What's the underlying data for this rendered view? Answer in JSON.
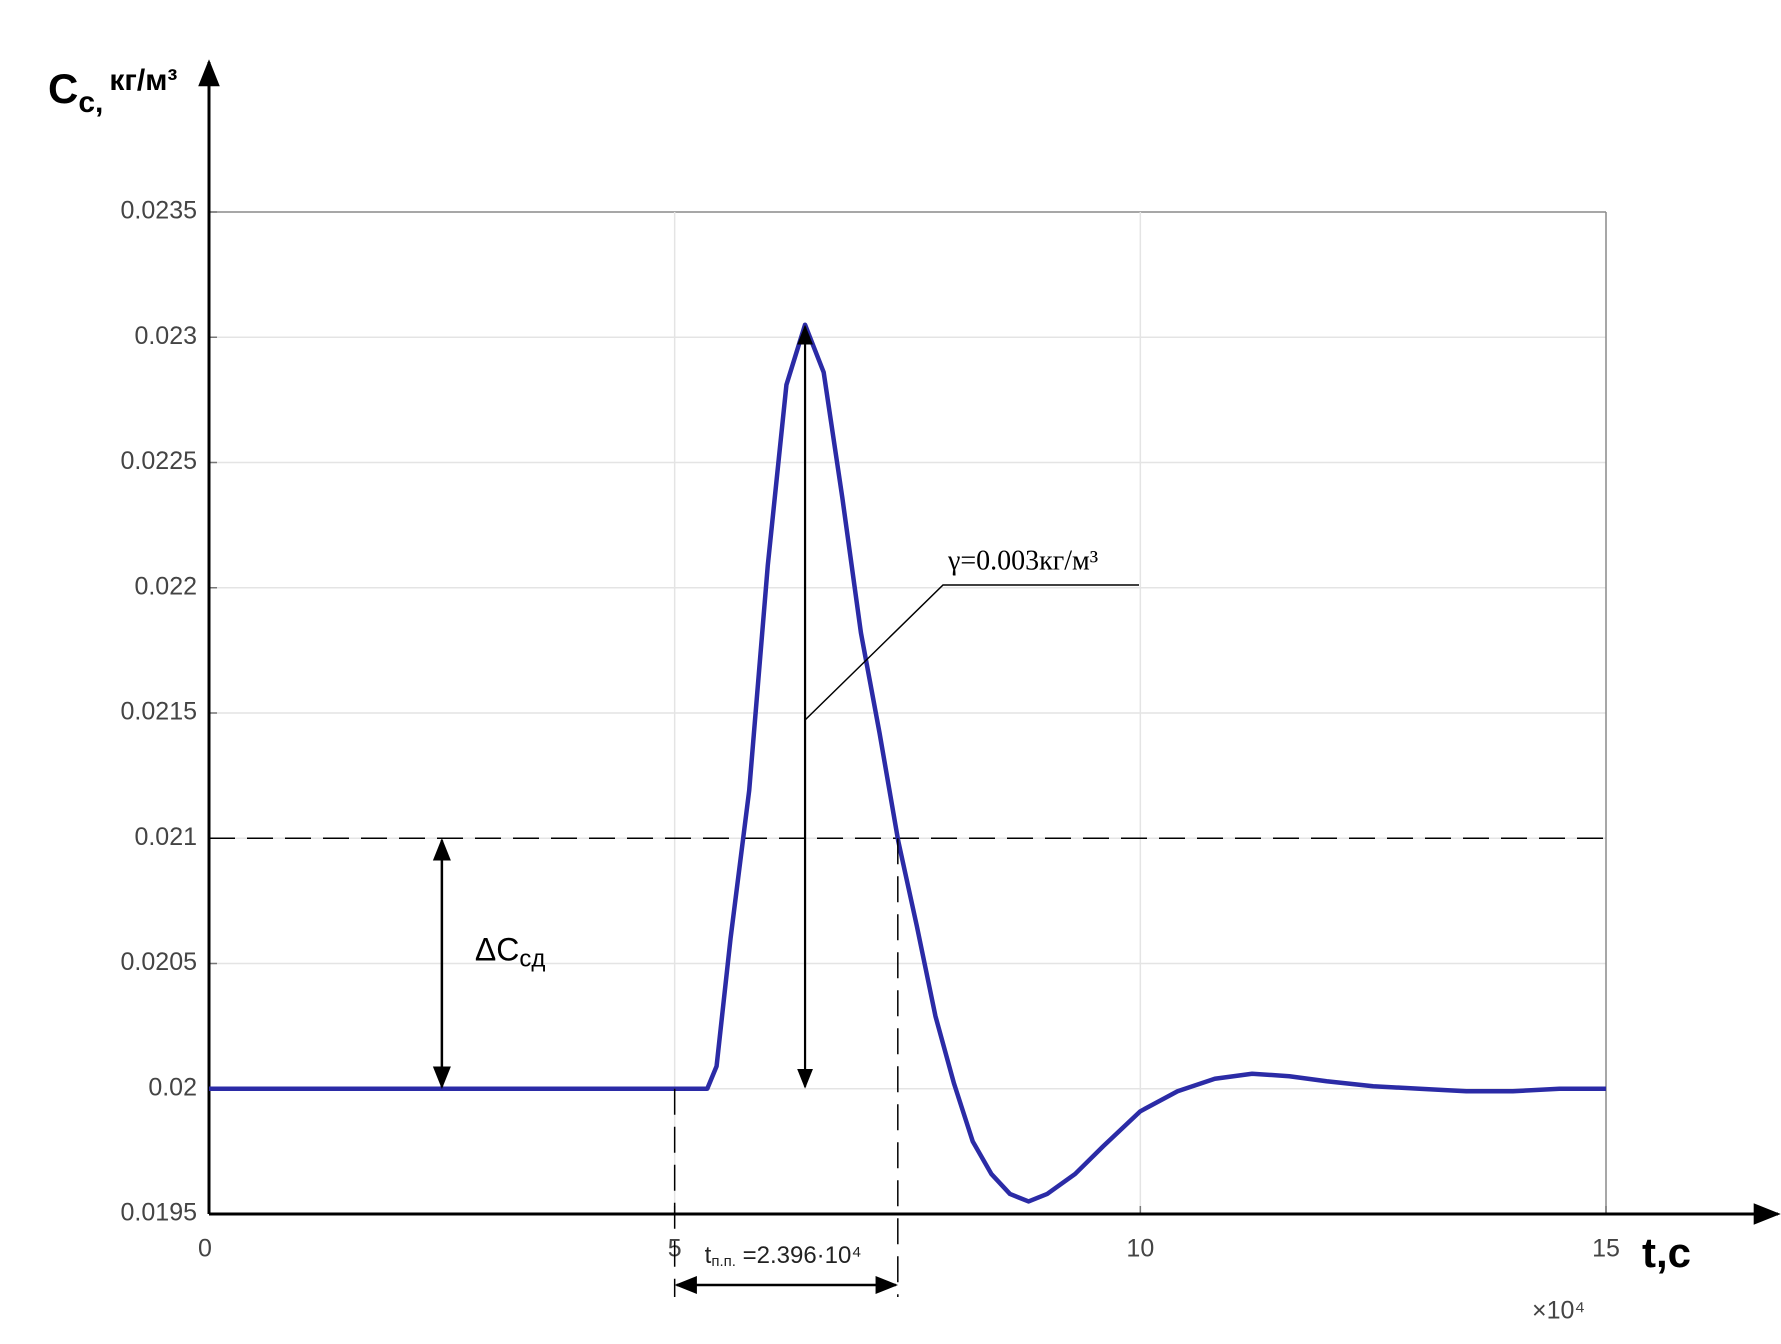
{
  "chart_data": {
    "type": "line",
    "y_label": {
      "main": "C",
      "sub": "с,",
      "unit": "кг/м³"
    },
    "x_label": "t,с",
    "x_multiplier": "×10⁴",
    "x": [
      0,
      5,
      5.35,
      5.45,
      5.6,
      5.8,
      6.0,
      6.2,
      6.4,
      6.6,
      6.8,
      7.0,
      7.2,
      7.4,
      7.6,
      7.8,
      8.0,
      8.2,
      8.4,
      8.6,
      8.8,
      9.0,
      9.3,
      9.6,
      10,
      10.4,
      10.8,
      11.2,
      11.6,
      12,
      12.5,
      13,
      13.5,
      14,
      14.5,
      15
    ],
    "series": [
      {
        "color": "#2b2ba6",
        "values": [
          0.02,
          0.02,
          0.02,
          0.02009,
          0.0206,
          0.02119,
          0.02209,
          0.02281,
          0.02305,
          0.02286,
          0.02236,
          0.02182,
          0.02142,
          0.02099,
          0.02065,
          0.02029,
          0.02002,
          0.01979,
          0.01966,
          0.01958,
          0.01955,
          0.01958,
          0.01966,
          0.01977,
          0.01991,
          0.01999,
          0.02004,
          0.02006,
          0.02005,
          0.02003,
          0.02001,
          0.02,
          0.01999,
          0.01999,
          0.02,
          0.02
        ]
      }
    ],
    "xlim": [
      0,
      15
    ],
    "ylim": [
      0.0195,
      0.0235
    ],
    "xticks": [
      0,
      5,
      10,
      15
    ],
    "yticks": [
      0.0195,
      0.02,
      0.0205,
      0.021,
      0.0215,
      0.022,
      0.0225,
      0.023,
      0.0235
    ],
    "grid": true,
    "reference_line": 0.021,
    "baseline": 0.02,
    "annotations": {
      "gamma": "γ=0.003кг/м³",
      "delta": {
        "main": "ΔC",
        "sub": "сд"
      },
      "settling": {
        "main": "t",
        "sub": "п.п.",
        "rest": " =2.396·10⁴",
        "start": 5,
        "value": 2.396
      }
    }
  }
}
